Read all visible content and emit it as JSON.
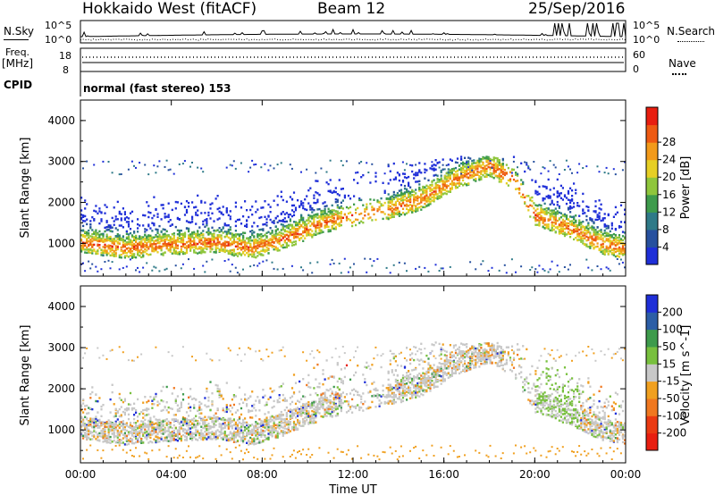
{
  "header": {
    "title": "Hokkaido West (fitACF)",
    "beam": "Beam 12",
    "date": "25/Sep/2016"
  },
  "aux_panels": {
    "nsky_label": "N.Sky",
    "nsearch_label": "N.Search",
    "nsky_ticks": [
      "10^5",
      "10^0"
    ],
    "nsearch_ticks": [
      "10^5",
      "10^0"
    ],
    "freq_label_1": "Freq.",
    "freq_label_2": "[MHz]",
    "freq_ticks": [
      "18",
      "8"
    ],
    "nave_label": "Nave",
    "nave_ticks": [
      "60",
      "0"
    ],
    "cpid_label": "CPID",
    "cpid_value": "normal (fast stereo) 153"
  },
  "chart_data": [
    {
      "type": "heatmap",
      "name": "power",
      "ylabel": "Slant Range [km]",
      "yticks": [
        1000,
        2000,
        3000,
        4000
      ],
      "ylim": [
        200,
        4500
      ],
      "xlim_hours": [
        0,
        24
      ],
      "colorbar": {
        "label": "Power [dB]",
        "ticks": [
          "4",
          "8",
          "12",
          "16",
          "20",
          "24",
          "28"
        ],
        "colors": [
          "#1f2fd8",
          "#27509e",
          "#2f7a88",
          "#3e9b4c",
          "#8fc63c",
          "#e6cf25",
          "#f29a1a",
          "#ee5a12",
          "#e81e10"
        ]
      },
      "bands": [
        {
          "t": 0.0,
          "r": 1050
        },
        {
          "t": 2.0,
          "r": 900
        },
        {
          "t": 4.0,
          "r": 1000
        },
        {
          "t": 6.0,
          "r": 1050
        },
        {
          "t": 7.5,
          "r": 900
        },
        {
          "t": 9.0,
          "r": 1150
        },
        {
          "t": 10.5,
          "r": 1500
        },
        {
          "t": 12.0,
          "r": 1700
        },
        {
          "t": 13.5,
          "r": 1850
        },
        {
          "t": 15.0,
          "r": 2100
        },
        {
          "t": 16.5,
          "r": 2600
        },
        {
          "t": 18.0,
          "r": 2900
        },
        {
          "t": 19.0,
          "r": 2600
        },
        {
          "t": 20.0,
          "r": 1700
        },
        {
          "t": 21.5,
          "r": 1400
        },
        {
          "t": 23.0,
          "r": 1000
        },
        {
          "t": 24.0,
          "r": 900
        }
      ]
    },
    {
      "type": "heatmap",
      "name": "velocity",
      "ylabel": "Slant Range [km]",
      "yticks": [
        1000,
        2000,
        3000,
        4000
      ],
      "ylim": [
        200,
        4500
      ],
      "xlim_hours": [
        0,
        24
      ],
      "colorbar": {
        "label": "Velocity [m s^-1]",
        "ticks": [
          "200",
          "100",
          "50",
          "15",
          "-15",
          "-50",
          "-100",
          "-200"
        ],
        "colors": [
          "#1f2fd8",
          "#2c5ea6",
          "#3e9b4c",
          "#78c03e",
          "#c8c8c8",
          "#f0a020",
          "#f07820",
          "#ea3a12",
          "#e81e10"
        ]
      }
    }
  ],
  "xaxis": {
    "label": "Time UT",
    "ticks": [
      "00:00",
      "04:00",
      "08:00",
      "12:00",
      "16:00",
      "20:00",
      "00:00"
    ],
    "tick_hours": [
      0,
      4,
      8,
      12,
      16,
      20,
      24
    ]
  }
}
